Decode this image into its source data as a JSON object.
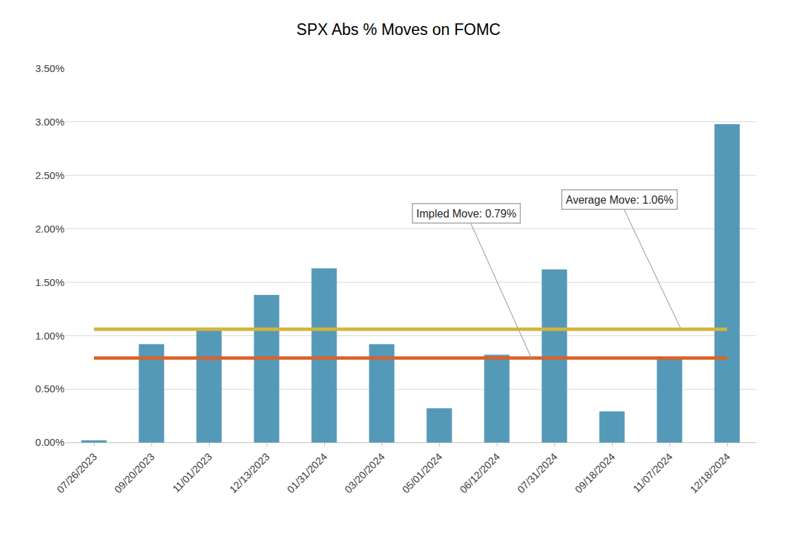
{
  "chart_data": {
    "type": "bar",
    "title": "SPX Abs % Moves on FOMC",
    "categories": [
      "07/26/2023",
      "09/20/2023",
      "11/01/2023",
      "12/13/2023",
      "01/31/2024",
      "03/20/2024",
      "05/01/2024",
      "06/12/2024",
      "07/31/2024",
      "09/18/2024",
      "11/07/2024",
      "12/18/2024"
    ],
    "values": [
      0.02,
      0.92,
      1.05,
      1.38,
      1.63,
      0.92,
      0.32,
      0.82,
      1.62,
      0.29,
      0.79,
      2.98
    ],
    "color": "#5599b9",
    "ylim": [
      0,
      3.5
    ],
    "yticks": [
      {
        "value": 0,
        "label": "0.00%"
      },
      {
        "value": 0.5,
        "label": "0.50%"
      },
      {
        "value": 1,
        "label": "1.00%"
      },
      {
        "value": 1.5,
        "label": "1.50%"
      },
      {
        "value": 2,
        "label": "2.00%"
      },
      {
        "value": 2.5,
        "label": "2.50%"
      },
      {
        "value": 3,
        "label": "3.00%"
      },
      {
        "value": 3.5,
        "label": "3.50%"
      }
    ],
    "grid": true,
    "data_labels": false,
    "reference_lines": [
      {
        "value": 1.06,
        "color": "#d4b43c",
        "annotation": "Average Move: 1.06%"
      },
      {
        "value": 0.79,
        "color": "#d9622b",
        "annotation": "Impled Move: 0.79%"
      }
    ]
  }
}
